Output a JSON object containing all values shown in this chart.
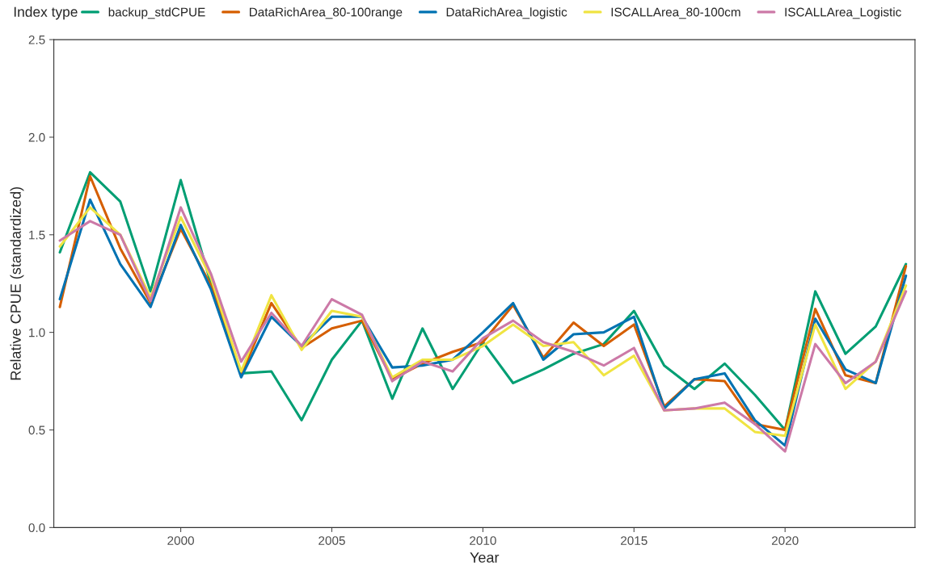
{
  "chart_data": {
    "type": "line",
    "xlabel": "Year",
    "ylabel": "Relative CPUE (standardized)",
    "legend_title": "Index type",
    "legend": "top",
    "grid": false,
    "marker": "none",
    "line_style": "solid",
    "x": [
      1996,
      1997,
      1998,
      1999,
      2000,
      2001,
      2002,
      2003,
      2004,
      2005,
      2006,
      2007,
      2008,
      2009,
      2010,
      2011,
      2012,
      2013,
      2014,
      2015,
      2016,
      2017,
      2018,
      2019,
      2020,
      2021,
      2022,
      2023,
      2024
    ],
    "xlim": [
      1995.8,
      2024.3
    ],
    "xticks": [
      2000,
      2005,
      2010,
      2015,
      2020
    ],
    "ylim": [
      0,
      2.5
    ],
    "yticks": [
      {
        "value": 0,
        "label": "0.0"
      },
      {
        "value": 0.5,
        "label": "0.5"
      },
      {
        "value": 1,
        "label": "1.0"
      },
      {
        "value": 1.5,
        "label": "1.5"
      },
      {
        "value": 2,
        "label": "2.0"
      },
      {
        "value": 2.5,
        "label": "2.5"
      }
    ],
    "series": [
      {
        "name": "backup_stdCPUE",
        "color": "#009e73",
        "values": [
          1.41,
          1.82,
          1.67,
          1.21,
          1.78,
          1.25,
          0.79,
          0.8,
          0.55,
          0.86,
          1.06,
          0.66,
          1.02,
          0.71,
          0.95,
          0.74,
          0.81,
          0.89,
          0.94,
          1.11,
          0.83,
          0.71,
          0.84,
          0.68,
          0.5,
          1.21,
          0.89,
          1.03,
          1.35
        ]
      },
      {
        "name": "DataRichArea_80-100range",
        "color": "#d55e00",
        "values": [
          1.13,
          1.8,
          1.43,
          1.15,
          1.53,
          1.24,
          0.78,
          1.15,
          0.92,
          1.02,
          1.06,
          0.76,
          0.84,
          0.9,
          0.95,
          1.14,
          0.87,
          1.05,
          0.93,
          1.04,
          0.62,
          0.76,
          0.75,
          0.53,
          0.5,
          1.12,
          0.78,
          0.74,
          1.34
        ]
      },
      {
        "name": "DataRichArea_logistic",
        "color": "#0072b2",
        "values": [
          1.17,
          1.68,
          1.35,
          1.13,
          1.55,
          1.22,
          0.77,
          1.08,
          0.93,
          1.08,
          1.08,
          0.82,
          0.83,
          0.86,
          1.0,
          1.15,
          0.86,
          0.99,
          1.0,
          1.08,
          0.61,
          0.76,
          0.79,
          0.55,
          0.42,
          1.07,
          0.81,
          0.74,
          1.29
        ]
      },
      {
        "name": "ISCALLArea_80-100cm",
        "color": "#f0e442",
        "values": [
          1.44,
          1.64,
          1.5,
          1.18,
          1.59,
          1.28,
          0.8,
          1.19,
          0.91,
          1.11,
          1.08,
          0.77,
          0.86,
          0.86,
          0.93,
          1.04,
          0.93,
          0.95,
          0.78,
          0.88,
          0.6,
          0.61,
          0.61,
          0.49,
          0.47,
          1.04,
          0.71,
          0.85,
          1.24
        ]
      },
      {
        "name": "ISCALLArea_Logistic",
        "color": "#cc79a7",
        "values": [
          1.47,
          1.57,
          1.5,
          1.16,
          1.64,
          1.3,
          0.85,
          1.1,
          0.93,
          1.17,
          1.09,
          0.75,
          0.85,
          0.8,
          0.97,
          1.06,
          0.95,
          0.9,
          0.83,
          0.92,
          0.6,
          0.61,
          0.64,
          0.53,
          0.39,
          0.94,
          0.74,
          0.85,
          1.21
        ]
      }
    ]
  }
}
